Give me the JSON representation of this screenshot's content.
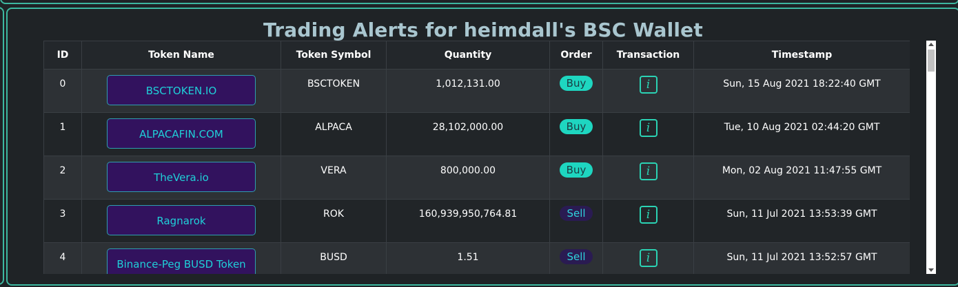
{
  "page": {
    "title": "Trading Alerts for heimdall's BSC Wallet"
  },
  "table": {
    "headers": {
      "id": "ID",
      "token_name": "Token Name",
      "token_symbol": "Token Symbol",
      "quantity": "Quantity",
      "order": "Order",
      "transaction": "Transaction",
      "timestamp": "Timestamp"
    },
    "rows": [
      {
        "id": "0",
        "name": "BSCTOKEN.IO",
        "symbol": "BSCTOKEN",
        "quantity": "1,012,131.00",
        "order": "Buy",
        "tx_icon": "i",
        "timestamp": "Sun, 15 Aug 2021 18:22:40 GMT"
      },
      {
        "id": "1",
        "name": "ALPACAFIN.COM",
        "symbol": "ALPACA",
        "quantity": "28,102,000.00",
        "order": "Buy",
        "tx_icon": "i",
        "timestamp": "Tue, 10 Aug 2021 02:44:20 GMT"
      },
      {
        "id": "2",
        "name": "TheVera.io",
        "symbol": "VERA",
        "quantity": "800,000.00",
        "order": "Buy",
        "tx_icon": "i",
        "timestamp": "Mon, 02 Aug 2021 11:47:55 GMT"
      },
      {
        "id": "3",
        "name": "Ragnarok",
        "symbol": "ROK",
        "quantity": "160,939,950,764.81",
        "order": "Sell",
        "tx_icon": "i",
        "timestamp": "Sun, 11 Jul 2021 13:53:39 GMT"
      },
      {
        "id": "4",
        "name": "Binance-Peg BUSD Token",
        "symbol": "BUSD",
        "quantity": "1.51",
        "order": "Sell",
        "tx_icon": "i",
        "timestamp": "Sun, 11 Jul 2021 13:52:57 GMT"
      }
    ]
  },
  "icons": {
    "transaction": "info-icon",
    "scroll_up": "scroll-up-arrow-icon",
    "scroll_down": "scroll-down-arrow-icon"
  },
  "colors": {
    "accent": "#3db8a0",
    "title": "#a9c6cf",
    "buy_badge": "#1ed6c0",
    "sell_badge": "#2a1b52",
    "token_button": "#32125e"
  }
}
